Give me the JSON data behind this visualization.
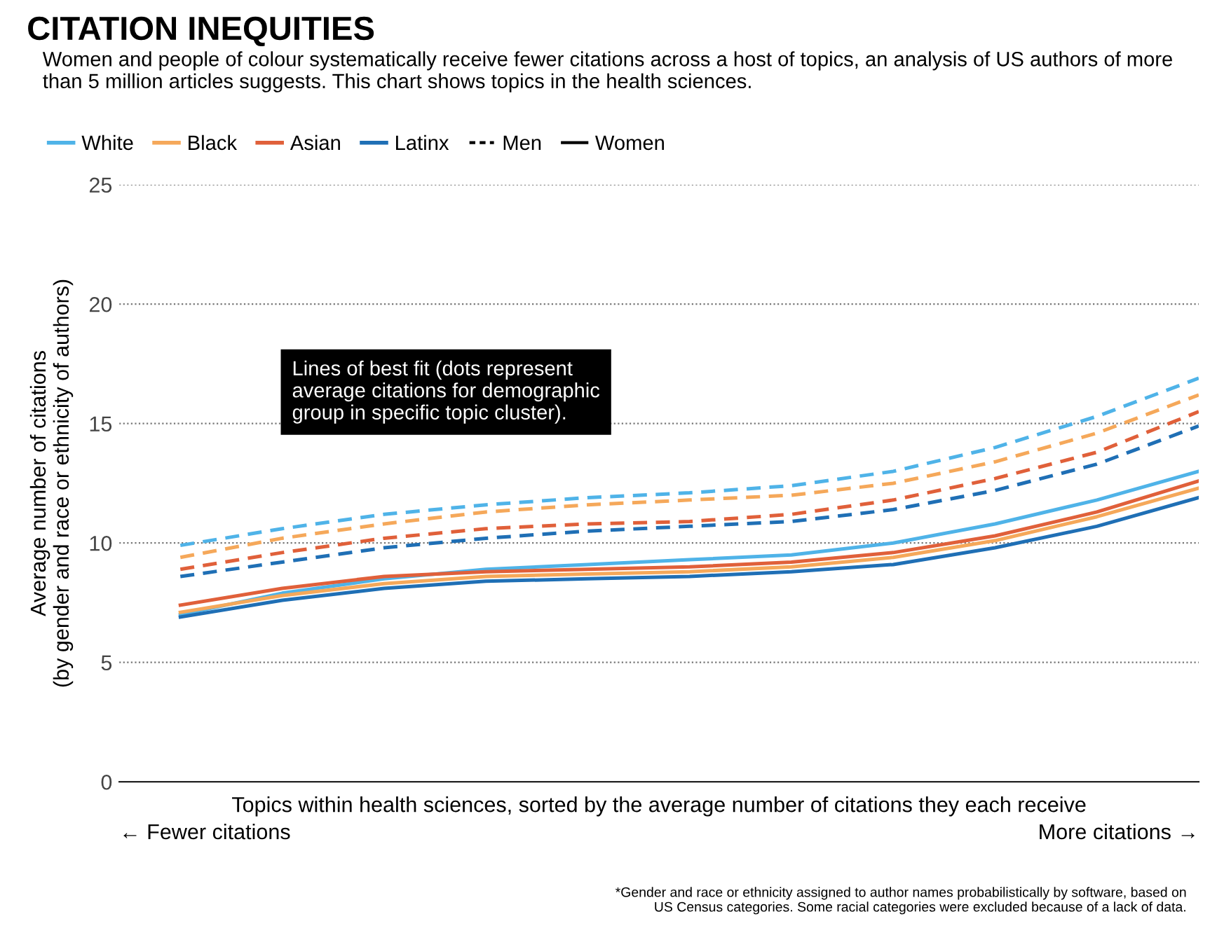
{
  "chart_data": {
    "type": "line",
    "title": "CITATION INEQUITIES",
    "subtitle": "Women and people of colour systematically receive fewer citations across a host of topics, an analysis of US authors of more than 5 million articles suggests. This chart shows topics in the health sciences.",
    "xlabel": "Topics within health sciences, sorted by the average number of citations they each receive",
    "ylabel": "Average number of citations\n(by gender and race or ethnicity of authors)",
    "categories": [
      null,
      null,
      null,
      null,
      null,
      null,
      null,
      null,
      null,
      null,
      null
    ],
    "series": [
      {
        "name": "White",
        "color": "#4fb3e8",
        "line_style": "dashed",
        "values": [
          9.9,
          10.6,
          11.2,
          11.6,
          11.9,
          12.1,
          12.4,
          13.0,
          14.0,
          15.3,
          16.9
        ]
      },
      {
        "name": "Black",
        "color": "#f5a85a",
        "line_style": "dashed",
        "values": [
          9.4,
          10.2,
          10.8,
          11.3,
          11.6,
          11.8,
          12.0,
          12.5,
          13.4,
          14.6,
          16.2
        ]
      },
      {
        "name": "Asian",
        "color": "#e0603a",
        "line_style": "dashed",
        "values": [
          8.9,
          9.6,
          10.2,
          10.6,
          10.8,
          10.9,
          11.2,
          11.8,
          12.7,
          13.8,
          15.5
        ]
      },
      {
        "name": "Latinx",
        "color": "#1f6fb5",
        "line_style": "dashed",
        "values": [
          8.6,
          9.2,
          9.8,
          10.2,
          10.5,
          10.7,
          10.9,
          11.4,
          12.2,
          13.3,
          14.9
        ]
      },
      {
        "color": "#4fb3e8",
        "line_style": "solid",
        "values": [
          7.0,
          7.9,
          8.5,
          8.9,
          9.1,
          9.3,
          9.5,
          10.0,
          10.8,
          11.8,
          13.0
        ]
      },
      {
        "color": "#f5a85a",
        "line_style": "solid",
        "values": [
          7.1,
          7.8,
          8.3,
          8.6,
          8.7,
          8.8,
          9.0,
          9.4,
          10.1,
          11.1,
          12.3
        ]
      },
      {
        "color": "#e0603a",
        "line_style": "solid",
        "values": [
          7.4,
          8.1,
          8.6,
          8.8,
          8.9,
          9.0,
          9.2,
          9.6,
          10.3,
          11.3,
          12.6
        ]
      },
      {
        "color": "#1f6fb5",
        "line_style": "solid",
        "values": [
          6.9,
          7.6,
          8.1,
          8.4,
          8.5,
          8.6,
          8.8,
          9.1,
          9.8,
          10.7,
          11.9
        ]
      }
    ],
    "ylim": [
      0,
      25
    ],
    "yticks": [
      0,
      5,
      10,
      15,
      20,
      25
    ],
    "grid": "y",
    "legend": "top left",
    "annotations": [
      "Lines of best fit (dots represent\naverage citations for demographic\ngroup in specific topic cluster).",
      "← Fewer citations",
      "More citations →",
      "*Gender and race or ethnicity assigned to author names probabilistically by software, based on\nUS Census categories. Some racial categories were excluded because of a lack of data.",
      "Men",
      "Women"
    ]
  }
}
